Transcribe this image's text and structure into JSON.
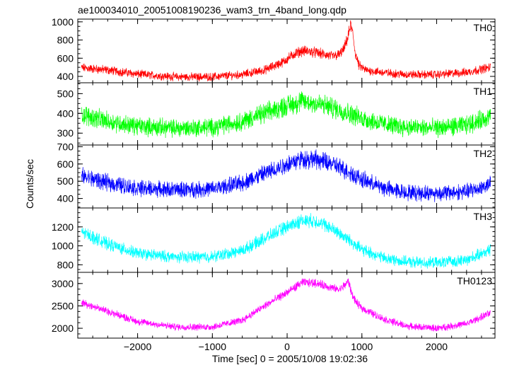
{
  "chart_data": {
    "type": "line",
    "title": "ae100034010_20051008190236_wam3_trn_4band_long.qdp",
    "xlabel": "Time [sec] 0 = 2005/10/08 19:02:36",
    "ylabel": "Counts/sec",
    "xlim": [
      -2800,
      2780
    ],
    "x_ticks": [
      -2000,
      -1000,
      0,
      1000,
      2000
    ],
    "x_tick_labels": [
      "−2000",
      "−1000",
      "0",
      "1000",
      "2000"
    ],
    "grid": false,
    "panels": [
      {
        "name": "TH0",
        "color": "#ff0000",
        "ylim": [
          330,
          1030
        ],
        "y_ticks": [
          400,
          600,
          800,
          1000
        ],
        "y_tick_labels": [
          "400",
          "600",
          "800",
          "1000"
        ],
        "noise": 40,
        "profile": [
          [
            -2750,
            495
          ],
          [
            -2400,
            470
          ],
          [
            -2000,
            425
          ],
          [
            -1500,
            395
          ],
          [
            -1000,
            395
          ],
          [
            -600,
            420
          ],
          [
            -300,
            470
          ],
          [
            -50,
            560
          ],
          [
            100,
            650
          ],
          [
            200,
            680
          ],
          [
            300,
            675
          ],
          [
            450,
            650
          ],
          [
            600,
            620
          ],
          [
            700,
            640
          ],
          [
            760,
            700
          ],
          [
            810,
            820
          ],
          [
            850,
            970
          ],
          [
            880,
            860
          ],
          [
            910,
            660
          ],
          [
            960,
            520
          ],
          [
            1050,
            470
          ],
          [
            1300,
            440
          ],
          [
            1600,
            420
          ],
          [
            2000,
            420
          ],
          [
            2400,
            445
          ],
          [
            2720,
            500
          ]
        ]
      },
      {
        "name": "TH1",
        "color": "#00ff00",
        "ylim": [
          240,
          555
        ],
        "y_ticks": [
          300,
          400,
          500
        ],
        "y_tick_labels": [
          "300",
          "400",
          "500"
        ],
        "noise": 40,
        "profile": [
          [
            -2750,
            395
          ],
          [
            -2400,
            360
          ],
          [
            -2000,
            335
          ],
          [
            -1500,
            325
          ],
          [
            -1000,
            330
          ],
          [
            -600,
            360
          ],
          [
            -300,
            400
          ],
          [
            0,
            440
          ],
          [
            200,
            460
          ],
          [
            400,
            450
          ],
          [
            600,
            430
          ],
          [
            800,
            405
          ],
          [
            1000,
            375
          ],
          [
            1300,
            345
          ],
          [
            1600,
            330
          ],
          [
            2000,
            325
          ],
          [
            2400,
            340
          ],
          [
            2720,
            385
          ]
        ]
      },
      {
        "name": "TH2",
        "color": "#0000ff",
        "ylim": [
          345,
          710
        ],
        "y_ticks": [
          400,
          500,
          600,
          700
        ],
        "y_tick_labels": [
          "400",
          "500",
          "600",
          "700"
        ],
        "noise": 40,
        "profile": [
          [
            -2750,
            530
          ],
          [
            -2400,
            490
          ],
          [
            -2000,
            460
          ],
          [
            -1500,
            450
          ],
          [
            -1000,
            455
          ],
          [
            -600,
            490
          ],
          [
            -300,
            545
          ],
          [
            0,
            600
          ],
          [
            200,
            630
          ],
          [
            400,
            625
          ],
          [
            600,
            600
          ],
          [
            800,
            560
          ],
          [
            1000,
            510
          ],
          [
            1300,
            460
          ],
          [
            1600,
            435
          ],
          [
            2000,
            430
          ],
          [
            2400,
            440
          ],
          [
            2720,
            480
          ]
        ]
      },
      {
        "name": "TH3",
        "color": "#00ffff",
        "ylim": [
          720,
          1400
        ],
        "y_ticks": [
          800,
          1000,
          1200
        ],
        "y_tick_labels": [
          "800",
          "1000",
          "1200"
        ],
        "noise": 55,
        "profile": [
          [
            -2750,
            1150
          ],
          [
            -2400,
            1020
          ],
          [
            -2000,
            920
          ],
          [
            -1500,
            880
          ],
          [
            -1000,
            885
          ],
          [
            -600,
            950
          ],
          [
            -300,
            1080
          ],
          [
            0,
            1200
          ],
          [
            200,
            1270
          ],
          [
            400,
            1260
          ],
          [
            600,
            1180
          ],
          [
            800,
            1080
          ],
          [
            1000,
            960
          ],
          [
            1300,
            870
          ],
          [
            1600,
            830
          ],
          [
            2000,
            820
          ],
          [
            2400,
            850
          ],
          [
            2720,
            960
          ]
        ]
      },
      {
        "name": "TH0123",
        "color": "#ff00ff",
        "ylim": [
          1780,
          3250
        ],
        "y_ticks": [
          2000,
          2500,
          3000
        ],
        "y_tick_labels": [
          "2000",
          "2500",
          "3000"
        ],
        "noise": 70,
        "profile": [
          [
            -2750,
            2580
          ],
          [
            -2400,
            2380
          ],
          [
            -2000,
            2150
          ],
          [
            -1500,
            2030
          ],
          [
            -1000,
            2030
          ],
          [
            -600,
            2180
          ],
          [
            -300,
            2500
          ],
          [
            0,
            2800
          ],
          [
            200,
            3020
          ],
          [
            400,
            3010
          ],
          [
            600,
            2900
          ],
          [
            700,
            2860
          ],
          [
            780,
            2980
          ],
          [
            820,
            3050
          ],
          [
            860,
            2800
          ],
          [
            920,
            2580
          ],
          [
            1000,
            2450
          ],
          [
            1300,
            2200
          ],
          [
            1600,
            2050
          ],
          [
            2000,
            2000
          ],
          [
            2400,
            2100
          ],
          [
            2720,
            2340
          ]
        ]
      }
    ]
  }
}
